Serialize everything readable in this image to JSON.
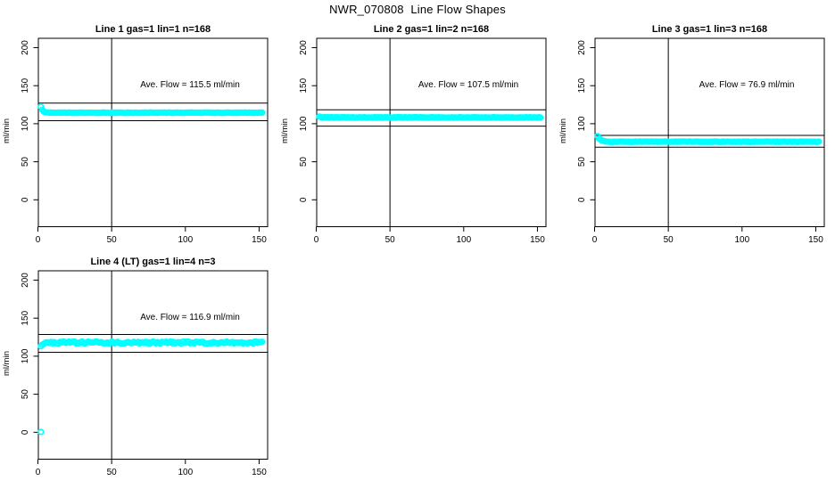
{
  "page_title": "NWR_070808  Line Flow Shapes",
  "colors": {
    "marker": "#00FFFF",
    "axis": "#000000",
    "background": "#FFFFFF"
  },
  "chart_data": [
    {
      "type": "scatter",
      "title": "Line 1 gas=1 lin=1 n=168",
      "n": 168,
      "ave_flow": 115.5,
      "ave_flow_label": "Ave. Flow =  115.5  ml/min",
      "ylabel": "ml/min",
      "x_ticks": [
        0,
        50,
        100,
        150
      ],
      "y_ticks": [
        0,
        50,
        100,
        150,
        200
      ],
      "xlim": [
        0,
        155
      ],
      "ylim": [
        0,
        200
      ],
      "vline_x": 50,
      "ref_lines": [
        127.1,
        104.0
      ],
      "series": {
        "x_start": 2,
        "x_end": 152,
        "step": 1,
        "noise": 0.3,
        "keypoints": [
          [
            2,
            122.5
          ],
          [
            3,
            118.5
          ],
          [
            4,
            116
          ],
          [
            6,
            114.8
          ],
          [
            10,
            114.5
          ],
          [
            152,
            114.5
          ]
        ]
      },
      "outliers": []
    },
    {
      "type": "scatter",
      "title": "Line 2 gas=1 lin=2 n=168",
      "n": 168,
      "ave_flow": 107.5,
      "ave_flow_label": "Ave. Flow =  107.5  ml/min",
      "ylabel": "ml/min",
      "x_ticks": [
        0,
        50,
        100,
        150
      ],
      "y_ticks": [
        0,
        50,
        100,
        150,
        200
      ],
      "xlim": [
        0,
        155
      ],
      "ylim": [
        0,
        200
      ],
      "vline_x": 50,
      "ref_lines": [
        118.3,
        96.8
      ],
      "series": {
        "x_start": 2,
        "x_end": 152,
        "step": 1,
        "noise": 0.3,
        "keypoints": [
          [
            2,
            109.5
          ],
          [
            3,
            108.6
          ],
          [
            5,
            108.3
          ],
          [
            152,
            108.3
          ]
        ]
      },
      "outliers": []
    },
    {
      "type": "scatter",
      "title": "Line 3 gas=1 lin=3 n=168",
      "n": 168,
      "ave_flow": 76.9,
      "ave_flow_label": "Ave. Flow =  76.9  ml/min",
      "ylabel": "ml/min",
      "x_ticks": [
        0,
        50,
        100,
        150
      ],
      "y_ticks": [
        0,
        50,
        100,
        150,
        200
      ],
      "xlim": [
        0,
        155
      ],
      "ylim": [
        0,
        200
      ],
      "vline_x": 50,
      "ref_lines": [
        84.6,
        69.2
      ],
      "series": {
        "x_start": 2,
        "x_end": 152,
        "step": 1,
        "noise": 0.3,
        "keypoints": [
          [
            2,
            84
          ],
          [
            3,
            80.5
          ],
          [
            5,
            78
          ],
          [
            8,
            76.3
          ],
          [
            152,
            76.3
          ]
        ]
      },
      "outliers": []
    },
    {
      "type": "scatter",
      "title": "Line 4 (LT) gas=1 lin=4 n=3",
      "n": 3,
      "ave_flow": 116.9,
      "ave_flow_label": "Ave. Flow =  116.9  ml/min",
      "ylabel": "ml/min",
      "x_ticks": [
        0,
        50,
        100,
        150
      ],
      "y_ticks": [
        0,
        50,
        100,
        150,
        200
      ],
      "xlim": [
        0,
        155
      ],
      "ylim": [
        0,
        200
      ],
      "vline_x": 50,
      "ref_lines": [
        128.6,
        105.2
      ],
      "series": {
        "x_start": 2,
        "x_end": 152,
        "step": 1,
        "noise": 1.4,
        "keypoints": [
          [
            2,
            112.5
          ],
          [
            3,
            116.5
          ],
          [
            5,
            118
          ],
          [
            152,
            117.8
          ]
        ]
      },
      "outliers": [
        [
          2,
          0.5
        ]
      ]
    }
  ]
}
